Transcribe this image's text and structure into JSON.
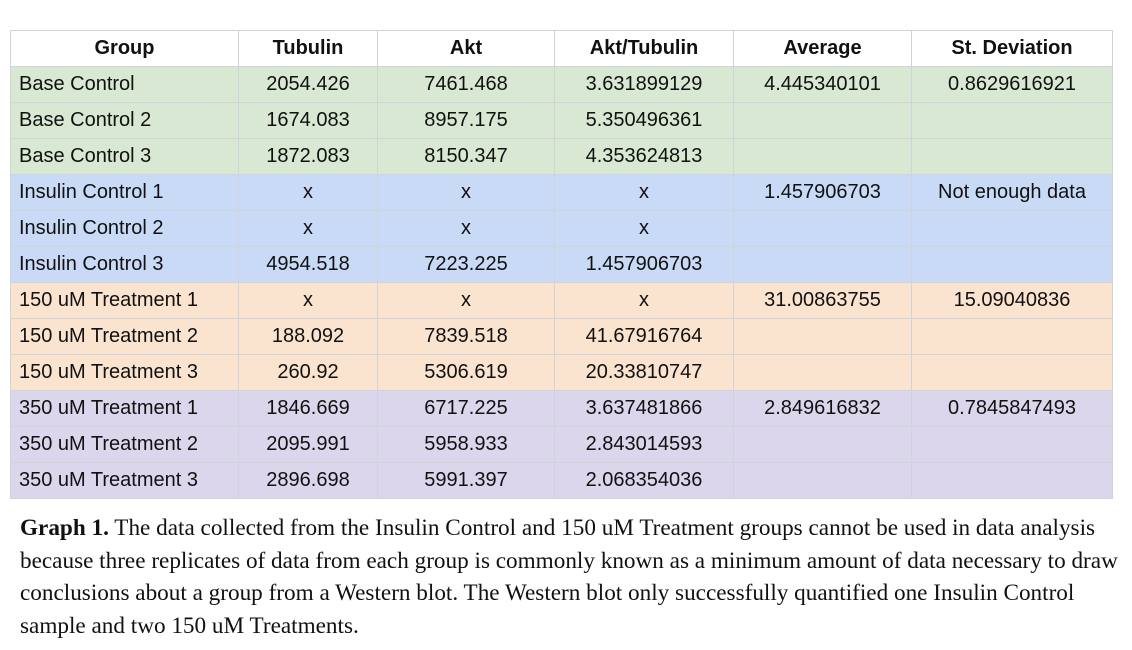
{
  "table": {
    "headers": [
      "Group",
      "Tubulin",
      "Akt",
      "Akt/Tubulin",
      "Average",
      "St. Deviation"
    ],
    "rows": [
      {
        "group": "Base Control",
        "tubulin": "2054.426",
        "akt": "7461.468",
        "ratio": "3.631899129",
        "average": "4.445340101",
        "stdev": "0.8629616921",
        "band": "base"
      },
      {
        "group": "Base Control 2",
        "tubulin": "1674.083",
        "akt": "8957.175",
        "ratio": "5.350496361",
        "average": "",
        "stdev": "",
        "band": "base"
      },
      {
        "group": "Base Control 3",
        "tubulin": "1872.083",
        "akt": "8150.347",
        "ratio": "4.353624813",
        "average": "",
        "stdev": "",
        "band": "base"
      },
      {
        "group": "Insulin Control 1",
        "tubulin": "x",
        "akt": "x",
        "ratio": "x",
        "average": "1.457906703",
        "stdev": "Not enough data",
        "band": "insulin"
      },
      {
        "group": "Insulin Control 2",
        "tubulin": "x",
        "akt": "x",
        "ratio": "x",
        "average": "",
        "stdev": "",
        "band": "insulin"
      },
      {
        "group": "Insulin Control 3",
        "tubulin": "4954.518",
        "akt": "7223.225",
        "ratio": "1.457906703",
        "average": "",
        "stdev": "",
        "band": "insulin"
      },
      {
        "group": "150 uM Treatment 1",
        "tubulin": "x",
        "akt": "x",
        "ratio": "x",
        "average": "31.00863755",
        "stdev": "15.09040836",
        "band": "t150"
      },
      {
        "group": "150 uM Treatment 2",
        "tubulin": "188.092",
        "akt": "7839.518",
        "ratio": "41.67916764",
        "average": "",
        "stdev": "",
        "band": "t150"
      },
      {
        "group": "150 uM Treatment 3",
        "tubulin": "260.92",
        "akt": "5306.619",
        "ratio": "20.33810747",
        "average": "",
        "stdev": "",
        "band": "t150"
      },
      {
        "group": "350 uM Treatment 1",
        "tubulin": "1846.669",
        "akt": "6717.225",
        "ratio": "3.637481866",
        "average": "2.849616832",
        "stdev": "0.7845847493",
        "band": "t350"
      },
      {
        "group": "350 uM Treatment 2",
        "tubulin": "2095.991",
        "akt": "5958.933",
        "ratio": "2.843014593",
        "average": "",
        "stdev": "",
        "band": "t350"
      },
      {
        "group": "350 uM Treatment 3",
        "tubulin": "2896.698",
        "akt": "5991.397",
        "ratio": "2.068354036",
        "average": "",
        "stdev": "",
        "band": "t350"
      }
    ]
  },
  "caption": {
    "label": "Graph 1.",
    "text": " The data collected from the Insulin Control and 150 uM Treatment groups cannot be used in data analysis because three replicates of data from each group is commonly known as a minimum amount of data necessary to draw conclusions about a group from a Western blot. The Western blot only successfully quantified one Insulin Control sample and two 150 uM Treatments."
  },
  "colors": {
    "base": "#d9e8d3",
    "insulin": "#c9daf7",
    "t150": "#fae4cf",
    "t350": "#dcd6ec",
    "grid": "#cfd4d9"
  }
}
